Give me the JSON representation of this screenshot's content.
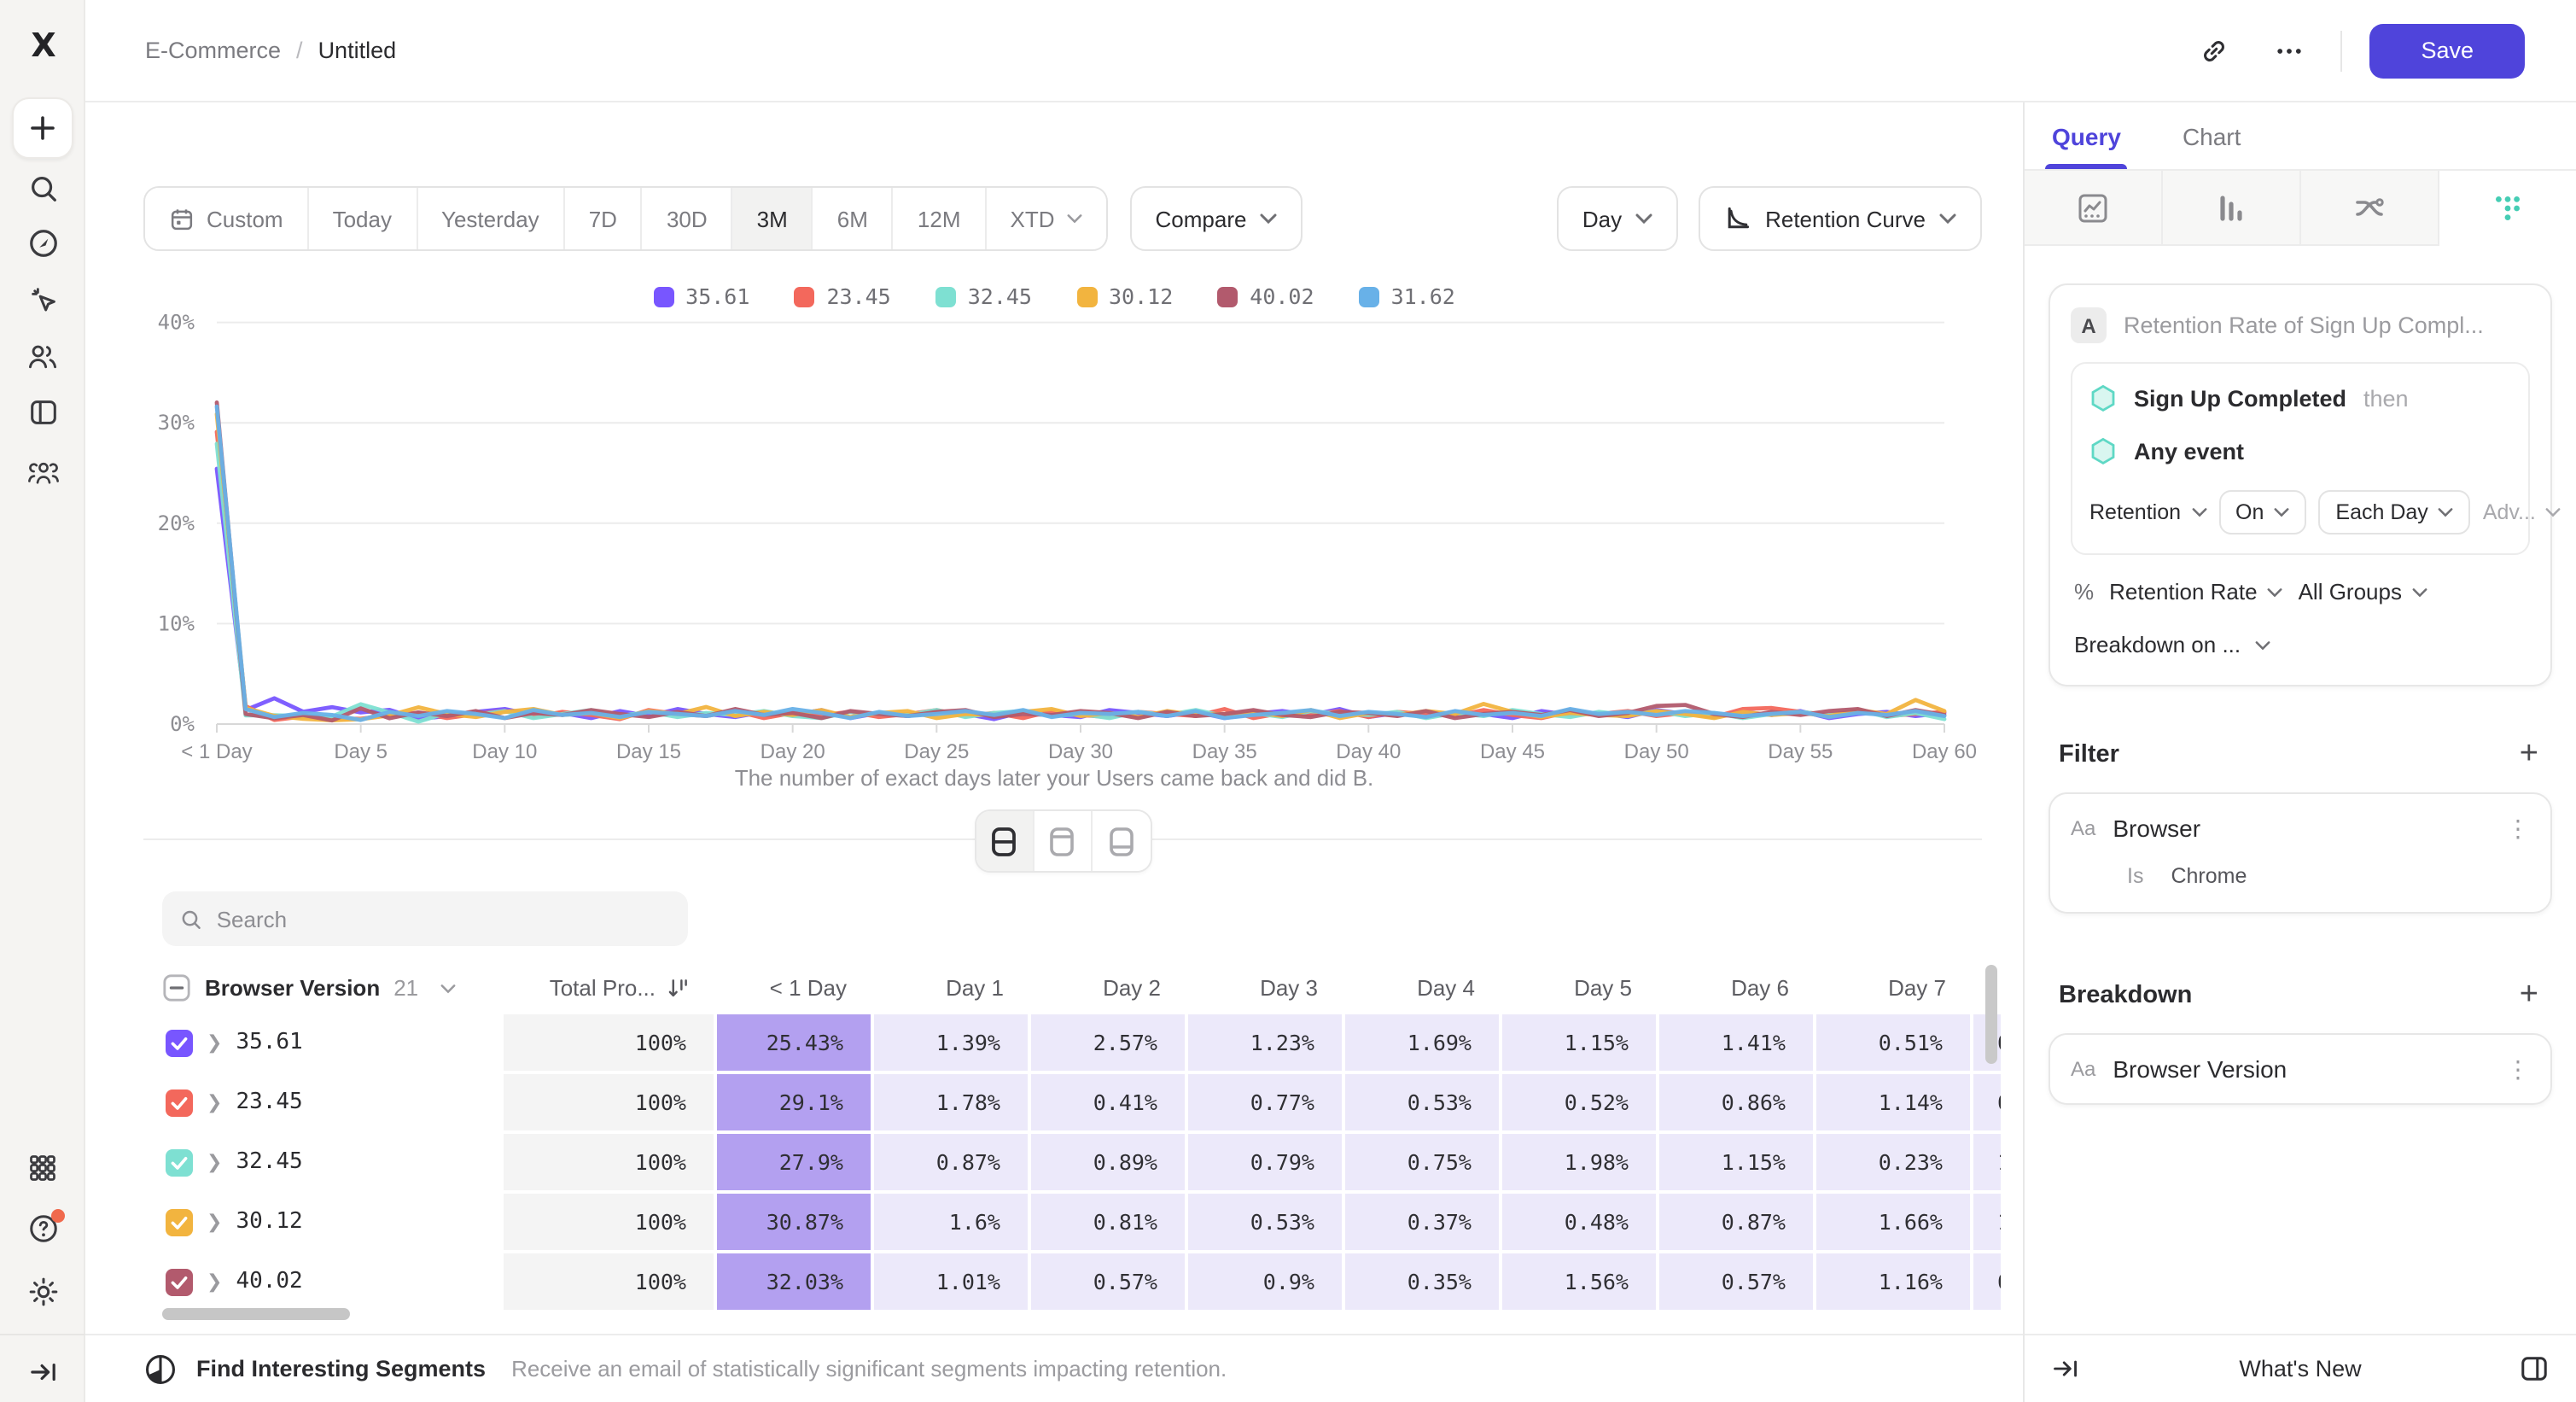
{
  "app": {
    "breadcrumb_project": "E-Commerce",
    "breadcrumb_sep": "/",
    "breadcrumb_title": "Untitled",
    "save_label": "Save"
  },
  "toolbar": {
    "ranges": [
      "Custom",
      "Today",
      "Yesterday",
      "7D",
      "30D",
      "3M",
      "6M",
      "12M",
      "XTD"
    ],
    "active_range": "3M",
    "compare_label": "Compare",
    "granularity_label": "Day",
    "view_label": "Retention Curve"
  },
  "chart_data": {
    "type": "line",
    "caption": "The number of exact days later your Users came back and did B.",
    "ylim": [
      0,
      40
    ],
    "y_ticks": [
      "0%",
      "10%",
      "20%",
      "30%",
      "40%"
    ],
    "x_tick_days": [
      0,
      5,
      10,
      15,
      20,
      25,
      30,
      35,
      40,
      45,
      50,
      55,
      60
    ],
    "x_tick_labels": [
      "< 1 Day",
      "Day 5",
      "Day 10",
      "Day 15",
      "Day 20",
      "Day 25",
      "Day 30",
      "Day 35",
      "Day 40",
      "Day 45",
      "Day 50",
      "Day 55",
      "Day 60"
    ],
    "grid": true,
    "legend_position": "top",
    "series": [
      {
        "name": "35.61",
        "color": "#7856FF",
        "values": [
          25.43,
          1.39,
          2.57,
          1.23,
          1.69,
          1.15,
          1.41,
          0.51,
          0.8,
          1.2,
          1.5,
          0.9,
          1.1,
          0.6,
          1.3,
          0.8,
          1.5,
          1.0,
          0.7,
          1.2,
          0.9,
          1.4,
          0.6,
          1.1,
          0.8,
          1.3,
          1.0,
          0.5,
          1.2,
          0.9,
          0.7,
          1.4,
          1.1,
          0.8,
          1.2,
          0.6,
          1.0,
          1.3,
          0.9,
          1.5,
          0.7,
          1.1,
          0.8,
          1.2,
          1.0,
          0.6,
          1.3,
          0.9,
          1.1,
          0.7,
          1.4,
          1.0,
          0.8,
          1.2,
          0.9,
          1.3,
          0.6,
          1.0,
          1.2,
          0.8,
          1.1
        ]
      },
      {
        "name": "23.45",
        "color": "#F3685C",
        "values": [
          29.1,
          1.78,
          0.41,
          0.77,
          0.53,
          0.52,
          0.86,
          1.14,
          0.6,
          1.0,
          1.3,
          0.7,
          1.2,
          0.9,
          0.5,
          1.4,
          1.0,
          0.8,
          1.3,
          0.6,
          1.1,
          0.9,
          1.2,
          0.7,
          1.0,
          1.4,
          0.8,
          1.1,
          0.6,
          1.3,
          0.9,
          0.7,
          1.2,
          1.0,
          0.8,
          1.5,
          0.6,
          1.1,
          0.9,
          1.3,
          0.7,
          1.2,
          1.0,
          0.8,
          1.4,
          0.9,
          0.6,
          1.2,
          1.0,
          1.3,
          0.8,
          1.1,
          0.7,
          1.5,
          1.6,
          1.2,
          0.9,
          1.3,
          0.8,
          1.0,
          1.2
        ]
      },
      {
        "name": "32.45",
        "color": "#7EE0D2",
        "values": [
          27.9,
          0.87,
          0.89,
          0.79,
          0.75,
          1.98,
          1.15,
          0.23,
          1.1,
          0.9,
          1.3,
          0.6,
          1.0,
          1.4,
          0.8,
          1.2,
          0.7,
          1.1,
          0.9,
          1.3,
          0.8,
          0.6,
          1.2,
          1.0,
          0.9,
          1.4,
          0.7,
          1.1,
          1.3,
          0.8,
          1.0,
          0.6,
          1.2,
          0.9,
          1.4,
          0.8,
          1.1,
          0.7,
          1.3,
          1.0,
          0.9,
          1.2,
          0.6,
          1.1,
          0.8,
          1.4,
          1.0,
          0.7,
          1.2,
          0.9,
          1.3,
          0.8,
          1.1,
          0.6,
          1.0,
          1.2,
          0.9,
          1.4,
          0.7,
          1.1,
          0.5
        ]
      },
      {
        "name": "30.12",
        "color": "#F2B43F",
        "values": [
          30.87,
          1.6,
          0.81,
          0.53,
          0.37,
          0.48,
          0.87,
          1.66,
          1.0,
          0.7,
          1.2,
          1.5,
          0.9,
          1.1,
          0.6,
          1.3,
          1.0,
          1.7,
          0.8,
          1.2,
          0.9,
          1.4,
          0.7,
          1.1,
          1.3,
          0.6,
          1.0,
          0.9,
          1.2,
          1.5,
          0.8,
          1.1,
          0.7,
          1.3,
          0.9,
          1.0,
          1.2,
          0.8,
          1.4,
          0.6,
          1.1,
          0.9,
          1.3,
          1.0,
          2.0,
          1.2,
          0.7,
          1.1,
          0.9,
          0.8,
          1.3,
          1.0,
          0.6,
          1.2,
          0.9,
          1.1,
          0.8,
          1.4,
          1.0,
          2.4,
          1.3
        ]
      },
      {
        "name": "40.02",
        "color": "#B25A6D",
        "values": [
          32.03,
          1.01,
          0.57,
          0.9,
          0.35,
          1.56,
          0.57,
          1.16,
          0.8,
          1.3,
          0.6,
          1.1,
          0.9,
          1.4,
          1.0,
          0.7,
          1.2,
          0.8,
          1.5,
          0.9,
          1.1,
          0.6,
          1.3,
          1.0,
          0.8,
          1.2,
          1.4,
          0.7,
          1.0,
          0.9,
          1.3,
          1.1,
          0.6,
          1.2,
          0.8,
          1.0,
          1.4,
          0.9,
          0.7,
          1.2,
          1.1,
          0.8,
          1.3,
          0.6,
          1.0,
          1.2,
          0.9,
          1.4,
          0.8,
          1.1,
          1.8,
          1.9,
          1.0,
          0.7,
          1.2,
          0.9,
          1.3,
          1.5,
          0.8,
          1.4,
          0.9
        ]
      },
      {
        "name": "31.62",
        "color": "#68B1E8",
        "values": [
          31.62,
          1.5,
          0.7,
          1.1,
          0.9,
          0.4,
          1.2,
          0.8,
          1.3,
          1.0,
          0.6,
          1.4,
          0.9,
          1.1,
          0.7,
          1.2,
          1.0,
          0.8,
          1.3,
          0.9,
          1.5,
          1.1,
          0.6,
          1.2,
          0.8,
          1.0,
          1.3,
          0.9,
          1.4,
          0.7,
          1.1,
          1.0,
          1.2,
          0.8,
          1.3,
          0.6,
          0.9,
          1.1,
          1.4,
          0.8,
          1.2,
          1.0,
          0.7,
          1.3,
          0.9,
          1.1,
          0.8,
          1.5,
          1.0,
          1.2,
          0.9,
          1.3,
          1.1,
          0.8,
          1.0,
          1.2,
          0.7,
          1.1,
          0.9,
          1.3,
          0.8
        ]
      }
    ]
  },
  "search": {
    "placeholder": "Search"
  },
  "table": {
    "group_header": "Browser Version",
    "group_count": "21",
    "total_header": "Total Pro...",
    "day_headers": [
      "< 1 Day",
      "Day 1",
      "Day 2",
      "Day 3",
      "Day 4",
      "Day 5",
      "Day 6",
      "Day 7"
    ],
    "rows": [
      {
        "label": "35.61",
        "color": "#7856FF",
        "total": "100%",
        "days": [
          "25.43%",
          "1.39%",
          "2.57%",
          "1.23%",
          "1.69%",
          "1.15%",
          "1.41%",
          "0.51%"
        ],
        "clipped": "0"
      },
      {
        "label": "23.45",
        "color": "#F3685C",
        "total": "100%",
        "days": [
          "29.1%",
          "1.78%",
          "0.41%",
          "0.77%",
          "0.53%",
          "0.52%",
          "0.86%",
          "1.14%"
        ],
        "clipped": "0"
      },
      {
        "label": "32.45",
        "color": "#7EE0D2",
        "total": "100%",
        "days": [
          "27.9%",
          "0.87%",
          "0.89%",
          "0.79%",
          "0.75%",
          "1.98%",
          "1.15%",
          "0.23%"
        ],
        "clipped": "1"
      },
      {
        "label": "30.12",
        "color": "#F2B43F",
        "total": "100%",
        "days": [
          "30.87%",
          "1.6%",
          "0.81%",
          "0.53%",
          "0.37%",
          "0.48%",
          "0.87%",
          "1.66%"
        ],
        "clipped": "1"
      },
      {
        "label": "40.02",
        "color": "#B25A6D",
        "total": "100%",
        "days": [
          "32.03%",
          "1.01%",
          "0.57%",
          "0.9%",
          "0.35%",
          "1.56%",
          "0.57%",
          "1.16%"
        ],
        "clipped": "0"
      }
    ]
  },
  "segments_bar": {
    "title": "Find Interesting Segments",
    "description": "Receive an email of statistically significant segments impacting retention."
  },
  "panel": {
    "tab_query": "Query",
    "tab_chart": "Chart",
    "query": {
      "step_letter": "A",
      "step_title": "Retention Rate of Sign Up Compl...",
      "first_event": "Sign Up Completed",
      "then_label": "then",
      "return_event": "Any event",
      "retention_label": "Retention",
      "on_label": "On",
      "each_label": "Each Day",
      "adv_label": "Adv...",
      "measure_prefix": "%",
      "measure_label": "Retention Rate",
      "groups_label": "All Groups",
      "breakdown_on_label": "Breakdown on ..."
    },
    "filter": {
      "heading": "Filter",
      "type_badge": "Aa",
      "property": "Browser",
      "operator": "Is",
      "value": "Chrome"
    },
    "breakdown": {
      "heading": "Breakdown",
      "type_badge": "Aa",
      "property": "Browser Version"
    },
    "footer": {
      "whats_new": "What's New"
    }
  },
  "colors": {
    "accent": "#4f44db",
    "cell_first": "#b3a0f0",
    "cell_day": "#ece9fa"
  }
}
